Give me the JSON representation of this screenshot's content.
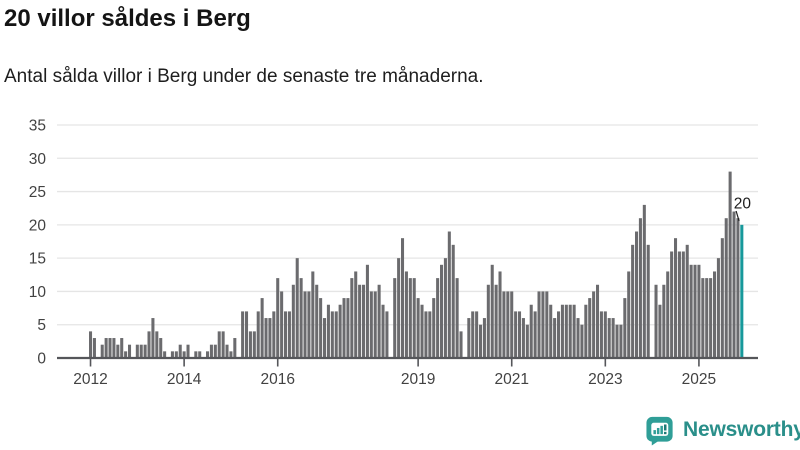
{
  "header": {
    "title": "20 villor såldes i Berg",
    "subtitle": "Antal sålda villor i Berg under de senaste tre månaderna."
  },
  "chart_data": {
    "type": "bar",
    "title": "20 villor såldes i Berg",
    "subtitle": "Antal sålda villor i Berg under de senaste tre månaderna.",
    "xlabel": "",
    "ylabel": "",
    "ylim": [
      0,
      35
    ],
    "y_ticks": [
      0,
      5,
      10,
      15,
      20,
      25,
      30,
      35
    ],
    "x_tick_labels": [
      "2012",
      "2014",
      "2016",
      "2019",
      "2021",
      "2023",
      "2025"
    ],
    "x_tick_bar_indices": [
      0,
      24,
      48,
      84,
      108,
      132,
      156
    ],
    "frequency": "monthly",
    "first_bar_period": "2012-01",
    "last_bar_period": "2025-12",
    "grid": "horizontal",
    "legend": "none",
    "bar_color": "#6b6b6e",
    "highlight_color": "#17999b",
    "highlight_last_bar": true,
    "last_value_label": "20",
    "axis_color": "#55565a",
    "gridline_color": "#e5e5e5",
    "tick_label_color": "#424242",
    "annotation_color": "#1d1d1d",
    "values": [
      4,
      3,
      0,
      2,
      3,
      3,
      3,
      2,
      3,
      1,
      2,
      0,
      2,
      2,
      2,
      4,
      6,
      4,
      3,
      1,
      0,
      1,
      1,
      2,
      1,
      2,
      0,
      1,
      1,
      0,
      1,
      2,
      2,
      4,
      4,
      2,
      1,
      3,
      0,
      7,
      7,
      4,
      4,
      7,
      9,
      6,
      6,
      7,
      12,
      10,
      7,
      7,
      11,
      15,
      12,
      10,
      10,
      13,
      11,
      9,
      6,
      8,
      7,
      7,
      8,
      9,
      9,
      12,
      13,
      11,
      11,
      14,
      10,
      10,
      11,
      8,
      7,
      0,
      12,
      15,
      18,
      13,
      12,
      12,
      9,
      8,
      7,
      7,
      9,
      12,
      14,
      15,
      19,
      17,
      12,
      4,
      0,
      6,
      7,
      7,
      5,
      6,
      11,
      14,
      11,
      13,
      10,
      10,
      10,
      7,
      7,
      6,
      5,
      8,
      7,
      10,
      10,
      10,
      8,
      6,
      7,
      8,
      8,
      8,
      8,
      6,
      5,
      8,
      9,
      10,
      11,
      7,
      7,
      6,
      6,
      5,
      5,
      9,
      13,
      17,
      19,
      21,
      23,
      17,
      0,
      11,
      8,
      11,
      13,
      16,
      18,
      16,
      16,
      17,
      14,
      14,
      14,
      12,
      12,
      12,
      13,
      15,
      18,
      21,
      28,
      22,
      21,
      20
    ]
  },
  "footer": {
    "brand": "Newsworthy",
    "brand_text_color": "#2a8f8a",
    "icon_bubble_color": "#2f9e97",
    "icon_glyph_color": "#1f7a77"
  }
}
